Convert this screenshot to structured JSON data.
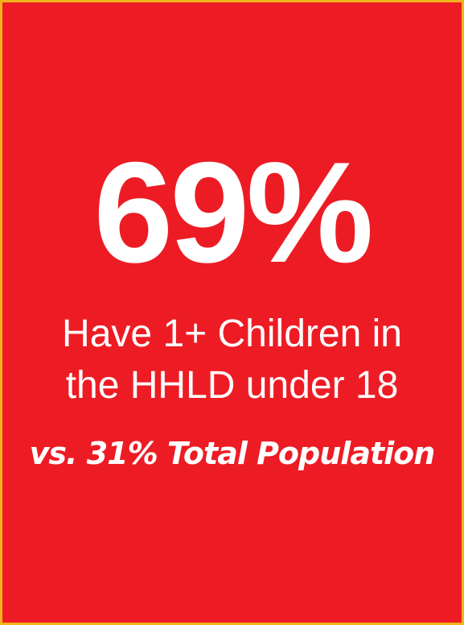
{
  "stat": {
    "value": "69%",
    "headline_line1": "Have 1+ Children in",
    "headline_line2": "the HHLD under 18",
    "comparison": "vs. 31% Total Population"
  },
  "colors": {
    "background": "#ed1c24",
    "border": "#f2b21b",
    "text": "#ffffff"
  }
}
